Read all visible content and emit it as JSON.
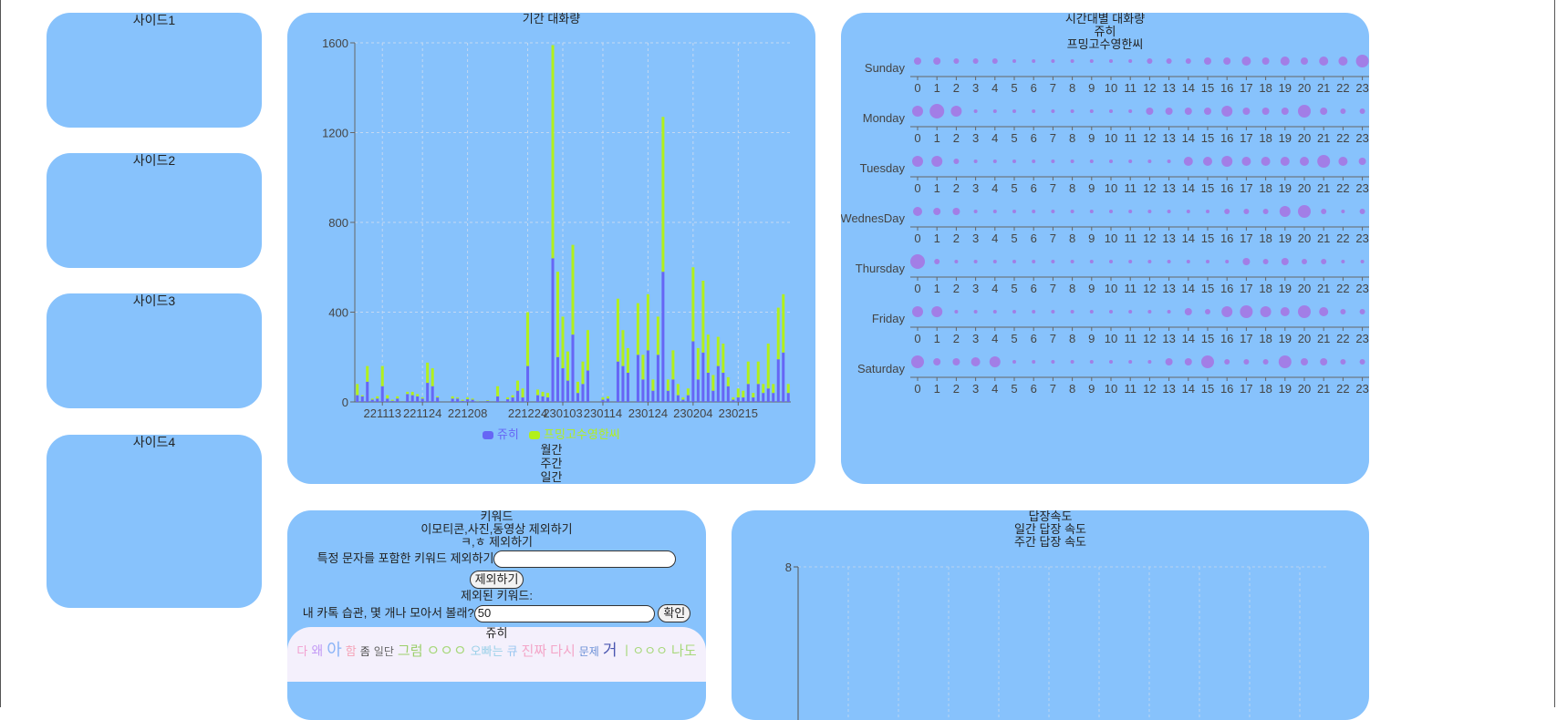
{
  "sidebar": {
    "items": [
      {
        "label": "사이드1"
      },
      {
        "label": "사이드2"
      },
      {
        "label": "사이드3"
      },
      {
        "label": "사이드4"
      }
    ]
  },
  "period_chart": {
    "title": "기간 대화량",
    "legend": [
      {
        "name": "쥬히",
        "color": "#6666f5"
      },
      {
        "name": "프밍고수영한씨",
        "color": "#b2f01c"
      }
    ],
    "modes": [
      "월간",
      "주간",
      "일간"
    ]
  },
  "time_chart": {
    "title": "시간대별 대화량",
    "users": [
      "쥬히",
      "프밍고수영한씨"
    ],
    "dot_color": "#a27ee6"
  },
  "keyword": {
    "title": "키워드",
    "opt_emoticon": "이모티콘,사진,동영상 제외하기",
    "opt_kh": "ㅋ,ㅎ 제외하기",
    "exclude_label": "특정 문자를 포함한 키워드 제외하기",
    "exclude_value": "",
    "exclude_button": "제외하기",
    "excluded_label": "제외된 키워드:",
    "count_label": "내 카톡 습관, 몇 개나 모아서 볼래?",
    "count_value": "50",
    "confirm_button": "확인",
    "cloud_user": "쥬히",
    "cloud_words": [
      "다",
      "왜",
      "아",
      "함",
      "좀",
      "일단",
      "그럼",
      "ㅇㅇㅇ",
      "오빠는",
      "큐",
      "진짜",
      "다시",
      "문제",
      "거",
      "ㅣㅇㅇㅇ",
      "나도"
    ],
    "cloud_colors": [
      "#f2a0d0",
      "#c39af5",
      "#8bb4f7",
      "#f5a4b8",
      "#444",
      "#666",
      "#9ccf6b",
      "#a7d87a",
      "#9ad0e8",
      "#9ac7f0",
      "#f3a6c8",
      "#f3a6c8",
      "#6a8fd6",
      "#4a56b0",
      "#a7d87a",
      "#a7d87a"
    ]
  },
  "reply": {
    "title": "답장속도",
    "daily": "일간 답장 속도",
    "weekly": "주간 답장 속도",
    "ymax": "8"
  },
  "chart_data": [
    {
      "type": "bar",
      "title": "기간 대화량",
      "stacked": true,
      "ylim": [
        0,
        1600
      ],
      "yticks": [
        0,
        400,
        800,
        1200,
        1600
      ],
      "xticks": [
        "221113",
        "221124",
        "221208",
        "221224",
        "230103",
        "230114",
        "230124",
        "230204",
        "230215"
      ],
      "xtick_index": [
        5,
        13,
        22,
        34,
        41,
        49,
        58,
        67,
        76
      ],
      "series": [
        {
          "name": "쥬히",
          "values": [
            30,
            25,
            90,
            10,
            15,
            70,
            15,
            5,
            15,
            0,
            35,
            30,
            25,
            15,
            85,
            70,
            20,
            0,
            0,
            15,
            15,
            5,
            12,
            10,
            3,
            0,
            5,
            0,
            25,
            0,
            12,
            20,
            50,
            20,
            160,
            0,
            30,
            25,
            20,
            640,
            200,
            150,
            95,
            300,
            40,
            80,
            140,
            0,
            0,
            10,
            15,
            0,
            180,
            160,
            130,
            0,
            210,
            100,
            230,
            50,
            210,
            580,
            50,
            100,
            30,
            10,
            30,
            270,
            100,
            220,
            130,
            50,
            160,
            130,
            70,
            10,
            20,
            20,
            80,
            20,
            80,
            40,
            60,
            40,
            190,
            220,
            40
          ]
        },
        {
          "name": "프밍고수영한씨",
          "values": [
            50,
            5,
            70,
            5,
            10,
            90,
            15,
            5,
            10,
            0,
            10,
            15,
            10,
            5,
            90,
            80,
            5,
            0,
            0,
            10,
            5,
            5,
            8,
            5,
            2,
            0,
            3,
            0,
            45,
            0,
            8,
            10,
            45,
            40,
            240,
            0,
            25,
            20,
            20,
            950,
            380,
            230,
            130,
            400,
            50,
            100,
            180,
            0,
            0,
            10,
            10,
            0,
            280,
            160,
            110,
            0,
            230,
            110,
            250,
            50,
            170,
            690,
            50,
            130,
            50,
            10,
            30,
            330,
            140,
            320,
            170,
            70,
            130,
            130,
            40,
            10,
            40,
            30,
            100,
            20,
            100,
            40,
            200,
            40,
            230,
            260,
            40
          ]
        }
      ]
    },
    {
      "type": "scatter",
      "title": "시간대별 대화량",
      "days": [
        "Sunday",
        "Monday",
        "Tuesday",
        "WednesDay",
        "Thursday",
        "Friday",
        "Saturday"
      ],
      "hours": [
        0,
        1,
        2,
        3,
        4,
        5,
        6,
        7,
        8,
        9,
        10,
        11,
        12,
        13,
        14,
        15,
        16,
        17,
        18,
        19,
        20,
        21,
        22,
        23
      ],
      "values": [
        [
          4,
          4,
          3,
          3,
          3,
          2,
          2,
          2,
          2,
          2,
          2,
          2,
          3,
          3,
          3,
          4,
          4,
          5,
          4,
          5,
          4,
          5,
          5,
          7
        ],
        [
          6,
          8,
          6,
          2,
          2,
          2,
          2,
          2,
          2,
          2,
          2,
          2,
          4,
          4,
          4,
          4,
          6,
          4,
          4,
          4,
          7,
          4,
          3,
          3
        ],
        [
          6,
          6,
          3,
          2,
          2,
          2,
          2,
          2,
          2,
          2,
          2,
          2,
          2,
          2,
          5,
          5,
          6,
          5,
          5,
          5,
          5,
          7,
          5,
          4
        ],
        [
          5,
          4,
          4,
          2,
          2,
          2,
          2,
          2,
          2,
          2,
          2,
          2,
          2,
          2,
          2,
          2,
          3,
          3,
          3,
          6,
          7,
          3,
          2,
          3
        ],
        [
          8,
          3,
          2,
          2,
          2,
          2,
          2,
          2,
          2,
          2,
          2,
          2,
          2,
          2,
          2,
          2,
          2,
          4,
          3,
          4,
          3,
          3,
          2,
          2
        ],
        [
          6,
          6,
          2,
          2,
          2,
          2,
          2,
          2,
          2,
          2,
          2,
          2,
          2,
          2,
          4,
          3,
          6,
          7,
          6,
          5,
          7,
          5,
          3,
          3
        ],
        [
          7,
          4,
          4,
          5,
          6,
          2,
          2,
          2,
          2,
          2,
          2,
          2,
          2,
          4,
          4,
          7,
          3,
          3,
          3,
          7,
          4,
          4,
          3,
          3
        ]
      ]
    },
    {
      "type": "line",
      "title": "답장속도",
      "ylim": [
        0,
        8
      ],
      "yticks": [
        8
      ]
    }
  ]
}
